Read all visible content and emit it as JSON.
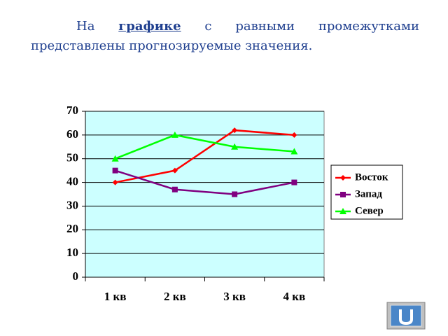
{
  "text": {
    "before": "На",
    "link": "графике",
    "after": "с равными промежутками представлены прогнозируемые значения."
  },
  "chart_data": {
    "type": "line",
    "categories": [
      "1 кв",
      "2 кв",
      "3 кв",
      "4 кв"
    ],
    "series": [
      {
        "name": "Восток",
        "color": "#ff0000",
        "marker": "diamond",
        "values": [
          40,
          45,
          62,
          60
        ]
      },
      {
        "name": "Запад",
        "color": "#800080",
        "marker": "square",
        "values": [
          45,
          37,
          35,
          40
        ]
      },
      {
        "name": "Север",
        "color": "#00ff00",
        "marker": "triangle",
        "values": [
          50,
          60,
          55,
          53
        ]
      }
    ],
    "ylim": [
      0,
      70
    ],
    "yticks": [
      0,
      10,
      20,
      30,
      40,
      50,
      60,
      70
    ],
    "grid": true,
    "legend": "right"
  }
}
